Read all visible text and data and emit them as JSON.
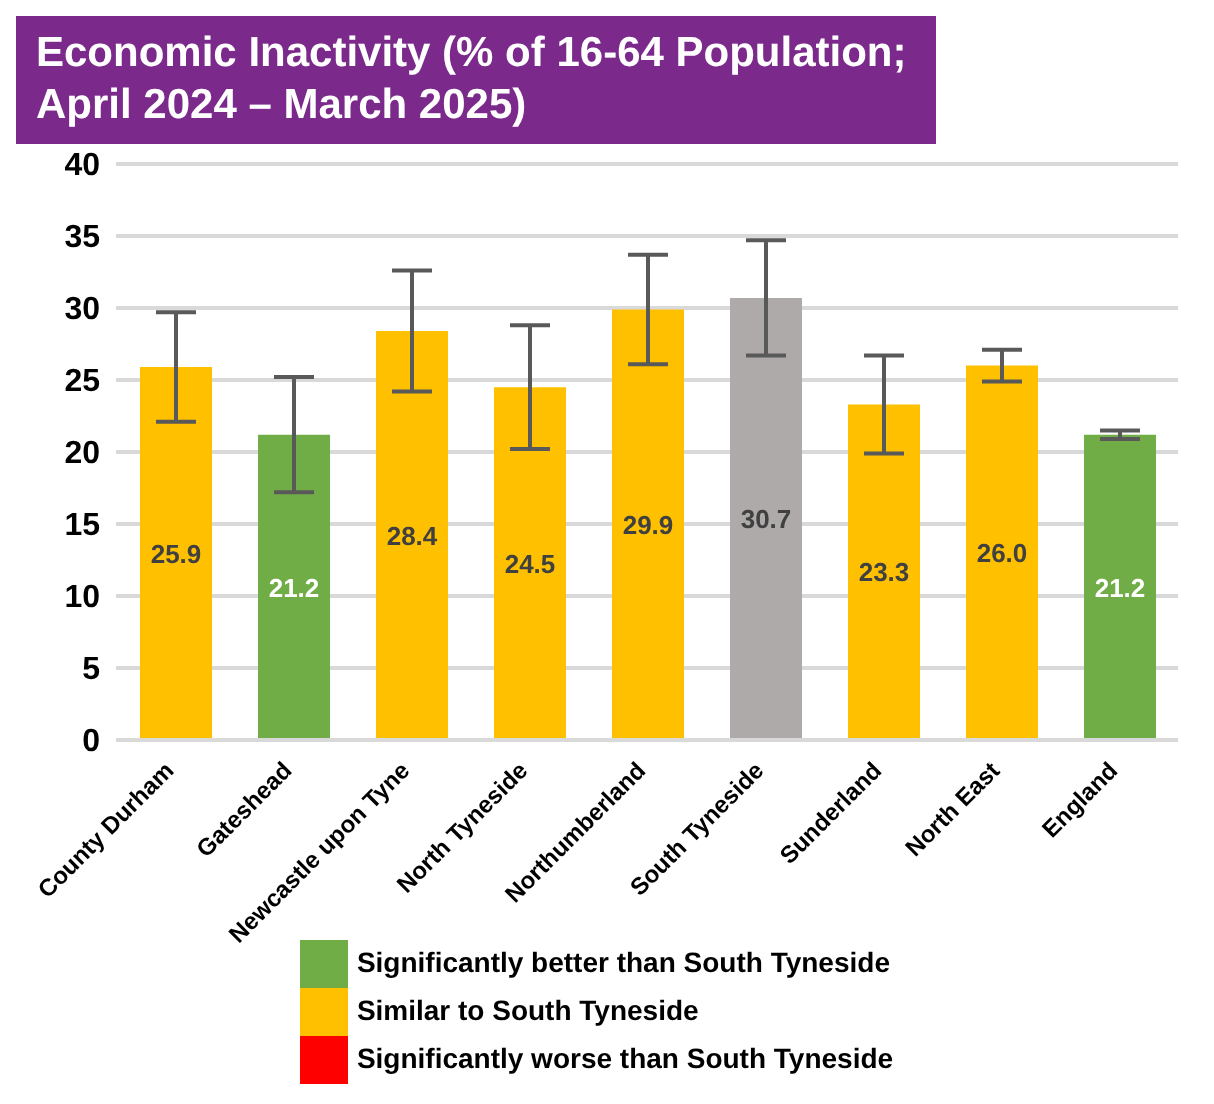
{
  "chart_data": {
    "type": "bar",
    "title": "Economic Inactivity (% of 16-64 Population; April 2024 – March 2025)",
    "categories": [
      "County Durham",
      "Gateshead",
      "Newcastle upon Tyne",
      "North Tyneside",
      "Northumberland",
      "South Tyneside",
      "Sunderland",
      "North East",
      "England"
    ],
    "stacked": true,
    "series": [
      {
        "name": "Significantly better than South Tyneside",
        "color": "#70ad47",
        "values": [
          null,
          21.2,
          null,
          null,
          null,
          null,
          null,
          null,
          21.2
        ],
        "value_labels": [
          null,
          "21.2",
          null,
          null,
          null,
          null,
          null,
          null,
          "21.2"
        ],
        "errors": [
          null,
          [
            17.2,
            25.2
          ],
          null,
          null,
          null,
          null,
          null,
          null,
          [
            20.9,
            21.5
          ]
        ]
      },
      {
        "name": "Similar to South Tyneside",
        "color": "#ffc000",
        "values": [
          25.9,
          null,
          28.4,
          24.5,
          29.9,
          null,
          23.3,
          26.0,
          null
        ],
        "value_labels": [
          "25.9",
          null,
          "28.4",
          "24.5",
          "29.9",
          null,
          "23.3",
          "26.0",
          null
        ],
        "errors": [
          [
            22.1,
            29.7
          ],
          null,
          [
            24.2,
            32.6
          ],
          [
            20.2,
            28.8
          ],
          [
            26.1,
            33.7
          ],
          null,
          [
            19.9,
            26.7
          ],
          [
            24.9,
            27.1
          ],
          null
        ]
      },
      {
        "name": "Significantly worse than South Tyneside",
        "color": "#ff0000",
        "values": [
          null,
          null,
          null,
          null,
          null,
          null,
          null,
          null,
          null
        ]
      },
      {
        "color": "#aeaaaa",
        "values": [
          null,
          null,
          null,
          null,
          null,
          30.7,
          null,
          null,
          null
        ],
        "value_labels": [
          null,
          null,
          null,
          null,
          null,
          "30.7",
          null,
          null,
          null
        ],
        "errors": [
          null,
          null,
          null,
          null,
          null,
          [
            26.7,
            34.7
          ],
          null,
          null,
          null
        ]
      }
    ],
    "ylim": [
      0,
      40
    ],
    "yticks": [
      0,
      5,
      10,
      15,
      20,
      25,
      30,
      35,
      40
    ],
    "grid": "y",
    "legend": "bottom"
  }
}
